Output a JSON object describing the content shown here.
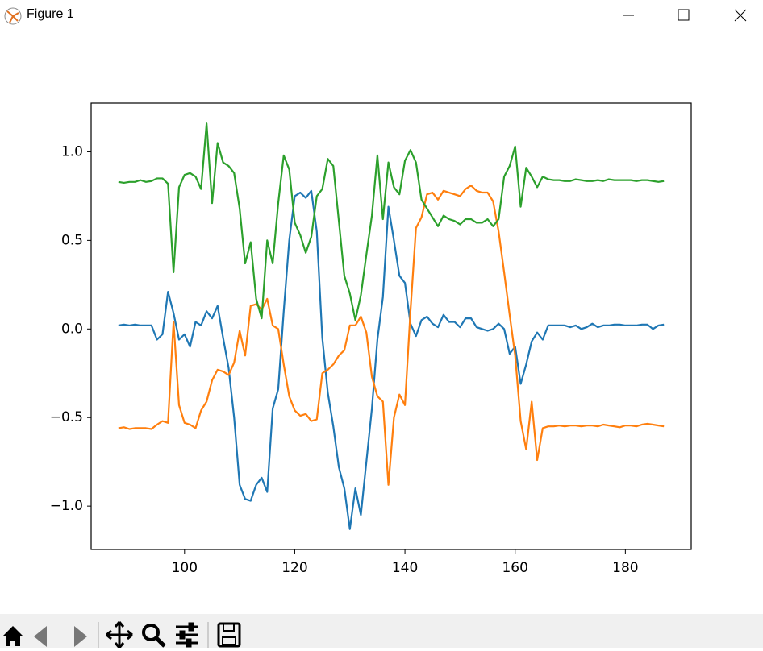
{
  "window": {
    "title": "Figure 1"
  },
  "chart_data": {
    "type": "line",
    "x": [
      88,
      89,
      90,
      91,
      92,
      93,
      94,
      95,
      96,
      97,
      98,
      99,
      100,
      101,
      102,
      103,
      104,
      105,
      106,
      107,
      108,
      109,
      110,
      111,
      112,
      113,
      114,
      115,
      116,
      117,
      118,
      119,
      120,
      121,
      122,
      123,
      124,
      125,
      126,
      127,
      128,
      129,
      130,
      131,
      132,
      133,
      134,
      135,
      136,
      137,
      138,
      139,
      140,
      141,
      142,
      143,
      144,
      145,
      146,
      147,
      148,
      149,
      150,
      151,
      152,
      153,
      154,
      155,
      156,
      157,
      158,
      159,
      160,
      161,
      162,
      163,
      164,
      165,
      166,
      167,
      168,
      169,
      170,
      171,
      172,
      173,
      174,
      175,
      176,
      177,
      178,
      179,
      180,
      181,
      182,
      183,
      184,
      185,
      186,
      187
    ],
    "series": [
      {
        "color": "#1f77b4",
        "values": [
          0.02,
          0.025,
          0.02,
          0.025,
          0.02,
          0.02,
          0.02,
          -0.06,
          -0.03,
          0.21,
          0.09,
          -0.06,
          -0.03,
          -0.1,
          0.04,
          0.02,
          0.1,
          0.06,
          0.13,
          -0.05,
          -0.22,
          -0.5,
          -0.88,
          -0.96,
          -0.97,
          -0.88,
          -0.84,
          -0.92,
          -0.45,
          -0.34,
          0.1,
          0.5,
          0.75,
          0.77,
          0.74,
          0.78,
          0.55,
          -0.05,
          -0.36,
          -0.55,
          -0.78,
          -0.9,
          -1.13,
          -0.9,
          -1.05,
          -0.75,
          -0.45,
          -0.06,
          0.18,
          0.69,
          0.5,
          0.3,
          0.26,
          0.03,
          -0.04,
          0.05,
          0.07,
          0.03,
          0.01,
          0.08,
          0.04,
          0.04,
          0.01,
          0.06,
          0.06,
          0.01,
          0.0,
          -0.01,
          0.0,
          0.03,
          0.0,
          -0.14,
          -0.1,
          -0.31,
          -0.2,
          -0.07,
          -0.02,
          -0.06,
          0.02,
          0.02,
          0.02,
          0.02,
          0.01,
          0.02,
          0.0,
          0.01,
          0.03,
          0.01,
          0.02,
          0.02,
          0.025,
          0.025,
          0.02,
          0.02,
          0.02,
          0.025,
          0.025,
          0.0,
          0.02,
          0.025
        ]
      },
      {
        "color": "#ff7f0e",
        "values": [
          -0.56,
          -0.555,
          -0.565,
          -0.56,
          -0.56,
          -0.56,
          -0.565,
          -0.54,
          -0.52,
          -0.53,
          0.04,
          -0.43,
          -0.53,
          -0.54,
          -0.56,
          -0.46,
          -0.41,
          -0.29,
          -0.23,
          -0.24,
          -0.26,
          -0.19,
          -0.01,
          -0.15,
          0.13,
          0.14,
          0.11,
          0.17,
          0.02,
          0.0,
          -0.2,
          -0.38,
          -0.46,
          -0.49,
          -0.48,
          -0.52,
          -0.51,
          -0.25,
          -0.23,
          -0.2,
          -0.15,
          -0.12,
          0.02,
          0.02,
          0.07,
          -0.02,
          -0.27,
          -0.38,
          -0.41,
          -0.88,
          -0.5,
          -0.37,
          -0.43,
          0.1,
          0.57,
          0.63,
          0.76,
          0.77,
          0.73,
          0.78,
          0.77,
          0.76,
          0.75,
          0.79,
          0.81,
          0.78,
          0.77,
          0.77,
          0.72,
          0.55,
          0.32,
          0.08,
          -0.15,
          -0.52,
          -0.68,
          -0.41,
          -0.74,
          -0.56,
          -0.55,
          -0.55,
          -0.545,
          -0.55,
          -0.545,
          -0.545,
          -0.55,
          -0.545,
          -0.545,
          -0.55,
          -0.54,
          -0.545,
          -0.55,
          -0.555,
          -0.545,
          -0.545,
          -0.55,
          -0.54,
          -0.535,
          -0.54,
          -0.545,
          -0.55
        ]
      },
      {
        "color": "#2ca02c",
        "values": [
          0.83,
          0.825,
          0.83,
          0.83,
          0.84,
          0.83,
          0.835,
          0.85,
          0.85,
          0.82,
          0.32,
          0.8,
          0.87,
          0.88,
          0.86,
          0.79,
          1.16,
          0.71,
          1.05,
          0.94,
          0.92,
          0.88,
          0.68,
          0.37,
          0.49,
          0.17,
          0.06,
          0.5,
          0.37,
          0.71,
          0.98,
          0.9,
          0.6,
          0.53,
          0.43,
          0.52,
          0.75,
          0.79,
          0.96,
          0.92,
          0.61,
          0.3,
          0.2,
          0.05,
          0.19,
          0.42,
          0.64,
          0.98,
          0.62,
          0.94,
          0.8,
          0.76,
          0.95,
          1.01,
          0.94,
          0.73,
          0.68,
          0.63,
          0.58,
          0.64,
          0.62,
          0.61,
          0.59,
          0.62,
          0.62,
          0.6,
          0.6,
          0.62,
          0.58,
          0.62,
          0.86,
          0.92,
          1.03,
          0.69,
          0.91,
          0.86,
          0.8,
          0.86,
          0.845,
          0.84,
          0.84,
          0.835,
          0.835,
          0.845,
          0.84,
          0.835,
          0.835,
          0.84,
          0.835,
          0.845,
          0.84,
          0.84,
          0.84,
          0.84,
          0.835,
          0.84,
          0.84,
          0.835,
          0.83,
          0.835
        ]
      }
    ],
    "xlim": [
      83.05,
      191.95
    ],
    "ylim": [
      -1.245,
      1.275
    ],
    "xticks": [
      100,
      120,
      140,
      160,
      180
    ],
    "yticks": [
      {
        "value": -1.0,
        "label": "−1.0"
      },
      {
        "value": -0.5,
        "label": "−0.5"
      },
      {
        "value": 0.0,
        "label": "0.0"
      },
      {
        "value": 0.5,
        "label": "0.5"
      },
      {
        "value": 1.0,
        "label": "1.0"
      }
    ],
    "grid": false
  }
}
